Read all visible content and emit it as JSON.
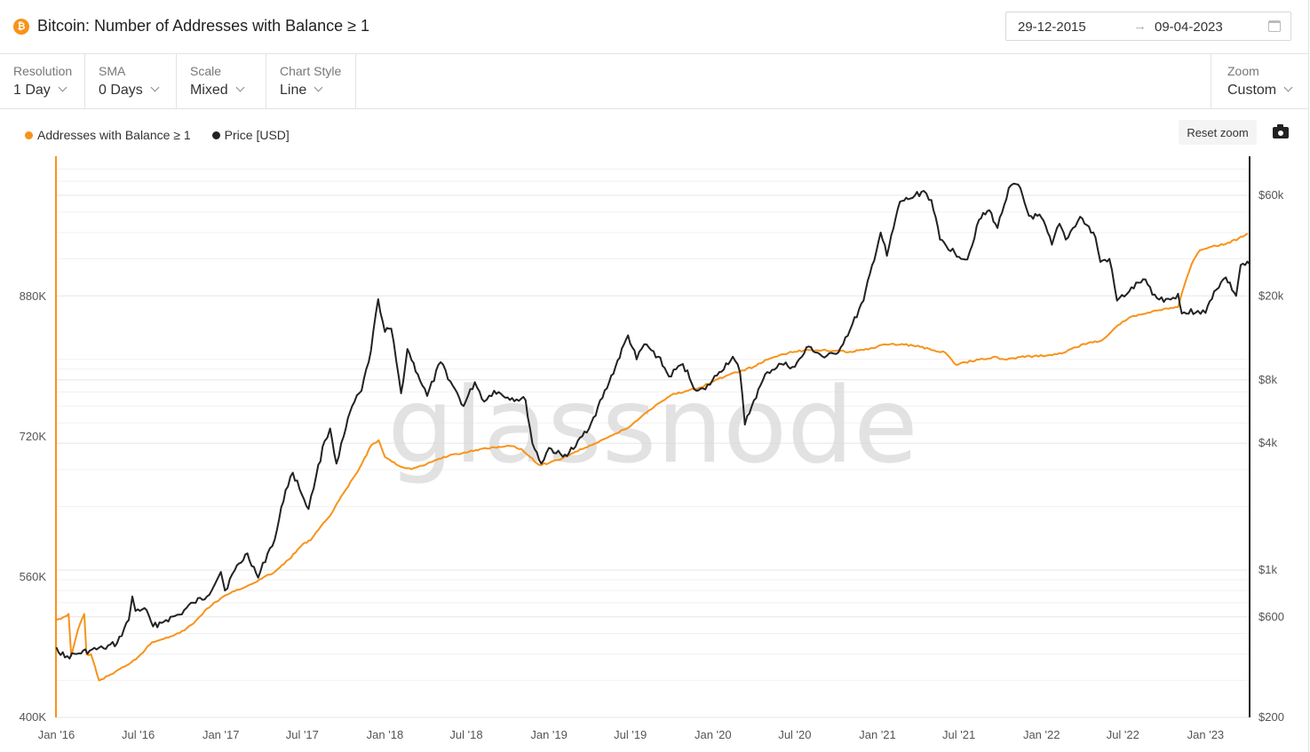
{
  "header": {
    "title": "Bitcoin: Number of Addresses with Balance ≥ 1",
    "asset_icon": "bitcoin-icon",
    "date_start": "29-12-2015",
    "date_arrow": "→",
    "date_end": "09-04-2023",
    "calendar_icon": "calendar-icon"
  },
  "controls": {
    "resolution": {
      "label": "Resolution",
      "value": "1 Day"
    },
    "sma": {
      "label": "SMA",
      "value": "0 Days"
    },
    "scale": {
      "label": "Scale",
      "value": "Mixed"
    },
    "chart_style": {
      "label": "Chart Style",
      "value": "Line"
    },
    "zoom": {
      "label": "Zoom",
      "value": "Custom"
    }
  },
  "toolbar": {
    "reset_zoom_label": "Reset zoom",
    "camera_icon": "camera-icon"
  },
  "watermark": "glassnode",
  "colors": {
    "addresses": "#f7931a",
    "price": "#222222",
    "accent": "#f7931a"
  },
  "chart_data": {
    "type": "line",
    "title": "Bitcoin: Number of Addresses with Balance ≥ 1",
    "legend_position": "top-left",
    "grid": true,
    "x_ticks": [
      "Jan '16",
      "Jul '16",
      "Jan '17",
      "Jul '17",
      "Jan '18",
      "Jul '18",
      "Jan '19",
      "Jul '19",
      "Jan '20",
      "Jul '20",
      "Jan '21",
      "Jul '21",
      "Jan '22",
      "Jul '22",
      "Jan '23"
    ],
    "xlim": [
      "2015-12-29",
      "2023-04-09"
    ],
    "y_left": {
      "ticks": [
        "400K",
        "560K",
        "720K",
        "880K"
      ],
      "tick_values": [
        400000,
        560000,
        720000,
        880000
      ],
      "scale": "linear",
      "ylim": [
        400000,
        1040000
      ]
    },
    "y_right": {
      "ticks": [
        "$200",
        "$600",
        "$1k",
        "$4k",
        "$8k",
        "$20k",
        "$60k"
      ],
      "tick_values": [
        200,
        600,
        1000,
        4000,
        8000,
        20000,
        60000
      ],
      "scale": "log",
      "ylim": [
        200,
        92000
      ]
    },
    "series": [
      {
        "name": "Addresses with Balance ≥ 1",
        "axis": "left",
        "points": [
          [
            "2016-01-01",
            511000
          ],
          [
            "2016-01-20",
            515000
          ],
          [
            "2016-01-28",
            518000
          ],
          [
            "2016-02-03",
            470000
          ],
          [
            "2016-02-18",
            500000
          ],
          [
            "2016-03-03",
            518000
          ],
          [
            "2016-03-08",
            472000
          ],
          [
            "2016-03-18",
            472000
          ],
          [
            "2016-04-05",
            442000
          ],
          [
            "2016-05-01",
            449000
          ],
          [
            "2016-06-01",
            458000
          ],
          [
            "2016-07-01",
            469000
          ],
          [
            "2016-08-01",
            486000
          ],
          [
            "2016-09-01",
            491000
          ],
          [
            "2016-10-01",
            496000
          ],
          [
            "2016-11-01",
            507000
          ],
          [
            "2016-12-01",
            524000
          ],
          [
            "2017-01-01",
            536000
          ],
          [
            "2017-02-01",
            544000
          ],
          [
            "2017-03-01",
            550000
          ],
          [
            "2017-04-01",
            558000
          ],
          [
            "2017-05-01",
            566000
          ],
          [
            "2017-06-01",
            580000
          ],
          [
            "2017-07-01",
            597000
          ],
          [
            "2017-07-20",
            602000
          ],
          [
            "2017-08-01",
            611000
          ],
          [
            "2017-09-01",
            630000
          ],
          [
            "2017-10-01",
            656000
          ],
          [
            "2017-11-01",
            680000
          ],
          [
            "2017-12-01",
            710000
          ],
          [
            "2017-12-18",
            716000
          ],
          [
            "2018-01-01",
            697000
          ],
          [
            "2018-02-01",
            687000
          ],
          [
            "2018-03-01",
            683000
          ],
          [
            "2018-04-01",
            688000
          ],
          [
            "2018-05-01",
            695000
          ],
          [
            "2018-06-01",
            700000
          ],
          [
            "2018-07-01",
            702000
          ],
          [
            "2018-08-01",
            706000
          ],
          [
            "2018-09-01",
            708000
          ],
          [
            "2018-10-01",
            710000
          ],
          [
            "2018-11-01",
            706000
          ],
          [
            "2018-11-20",
            697000
          ],
          [
            "2018-12-10",
            688000
          ],
          [
            "2019-01-01",
            690000
          ],
          [
            "2019-02-01",
            696000
          ],
          [
            "2019-03-01",
            703000
          ],
          [
            "2019-04-01",
            710000
          ],
          [
            "2019-05-01",
            717000
          ],
          [
            "2019-06-01",
            724000
          ],
          [
            "2019-07-01",
            732000
          ],
          [
            "2019-08-01",
            746000
          ],
          [
            "2019-09-01",
            758000
          ],
          [
            "2019-10-01",
            768000
          ],
          [
            "2019-11-01",
            772000
          ],
          [
            "2019-12-01",
            776000
          ],
          [
            "2020-01-01",
            783000
          ],
          [
            "2020-02-01",
            790000
          ],
          [
            "2020-03-01",
            795000
          ],
          [
            "2020-04-01",
            800000
          ],
          [
            "2020-05-01",
            808000
          ],
          [
            "2020-06-01",
            814000
          ],
          [
            "2020-07-01",
            817000
          ],
          [
            "2020-08-01",
            819000
          ],
          [
            "2020-09-01",
            819000
          ],
          [
            "2020-10-01",
            818000
          ],
          [
            "2020-11-01",
            817000
          ],
          [
            "2020-12-01",
            819000
          ],
          [
            "2021-01-01",
            823000
          ],
          [
            "2021-02-01",
            826000
          ],
          [
            "2021-03-01",
            825000
          ],
          [
            "2021-04-01",
            824000
          ],
          [
            "2021-05-01",
            819000
          ],
          [
            "2021-06-01",
            816000
          ],
          [
            "2021-06-25",
            802000
          ],
          [
            "2021-07-15",
            805000
          ],
          [
            "2021-08-15",
            808000
          ],
          [
            "2021-09-15",
            811000
          ],
          [
            "2021-10-15",
            808000
          ],
          [
            "2021-11-15",
            811000
          ],
          [
            "2021-12-15",
            812000
          ],
          [
            "2022-01-15",
            813000
          ],
          [
            "2022-02-15",
            815000
          ],
          [
            "2022-03-15",
            822000
          ],
          [
            "2022-04-15",
            827000
          ],
          [
            "2022-05-15",
            830000
          ],
          [
            "2022-06-15",
            845000
          ],
          [
            "2022-07-15",
            856000
          ],
          [
            "2022-08-15",
            860000
          ],
          [
            "2022-09-15",
            864000
          ],
          [
            "2022-10-15",
            867000
          ],
          [
            "2022-11-01",
            868000
          ],
          [
            "2022-11-10",
            885000
          ],
          [
            "2022-12-01",
            917000
          ],
          [
            "2022-12-20",
            933000
          ],
          [
            "2023-01-15",
            937000
          ],
          [
            "2023-02-15",
            940000
          ],
          [
            "2023-03-15",
            946000
          ],
          [
            "2023-04-05",
            952000
          ]
        ]
      },
      {
        "name": "Price [USD]",
        "axis": "right",
        "points": [
          [
            "2016-01-01",
            430
          ],
          [
            "2016-01-20",
            385
          ],
          [
            "2016-02-15",
            400
          ],
          [
            "2016-03-15",
            415
          ],
          [
            "2016-04-15",
            425
          ],
          [
            "2016-05-15",
            450
          ],
          [
            "2016-06-10",
            580
          ],
          [
            "2016-06-18",
            750
          ],
          [
            "2016-06-25",
            640
          ],
          [
            "2016-07-15",
            660
          ],
          [
            "2016-08-03",
            540
          ],
          [
            "2016-09-01",
            580
          ],
          [
            "2016-10-01",
            615
          ],
          [
            "2016-11-01",
            700
          ],
          [
            "2016-12-01",
            750
          ],
          [
            "2017-01-01",
            980
          ],
          [
            "2017-01-10",
            800
          ],
          [
            "2017-02-01",
            1000
          ],
          [
            "2017-03-01",
            1200
          ],
          [
            "2017-03-25",
            920
          ],
          [
            "2017-04-15",
            1200
          ],
          [
            "2017-05-01",
            1400
          ],
          [
            "2017-05-25",
            2400
          ],
          [
            "2017-06-10",
            2900
          ],
          [
            "2017-07-15",
            1950
          ],
          [
            "2017-08-01",
            2800
          ],
          [
            "2017-08-20",
            4100
          ],
          [
            "2017-09-01",
            4700
          ],
          [
            "2017-09-15",
            3200
          ],
          [
            "2017-10-01",
            4300
          ],
          [
            "2017-10-20",
            6000
          ],
          [
            "2017-11-10",
            7100
          ],
          [
            "2017-12-01",
            11000
          ],
          [
            "2017-12-17",
            19300
          ],
          [
            "2018-01-01",
            13500
          ],
          [
            "2018-01-15",
            14000
          ],
          [
            "2018-02-06",
            6900
          ],
          [
            "2018-02-20",
            11200
          ],
          [
            "2018-03-15",
            8500
          ],
          [
            "2018-04-05",
            6700
          ],
          [
            "2018-05-05",
            9700
          ],
          [
            "2018-06-01",
            7500
          ],
          [
            "2018-06-25",
            6000
          ],
          [
            "2018-07-20",
            7800
          ],
          [
            "2018-08-10",
            6300
          ],
          [
            "2018-09-01",
            7100
          ],
          [
            "2018-10-01",
            6600
          ],
          [
            "2018-11-10",
            6400
          ],
          [
            "2018-11-25",
            4000
          ],
          [
            "2018-12-15",
            3200
          ],
          [
            "2019-01-01",
            3800
          ],
          [
            "2019-02-01",
            3450
          ],
          [
            "2019-03-01",
            3850
          ],
          [
            "2019-04-05",
            5000
          ],
          [
            "2019-05-15",
            7800
          ],
          [
            "2019-06-26",
            13000
          ],
          [
            "2019-07-15",
            10000
          ],
          [
            "2019-08-01",
            11800
          ],
          [
            "2019-09-01",
            10300
          ],
          [
            "2019-09-25",
            8300
          ],
          [
            "2019-10-26",
            9500
          ],
          [
            "2019-11-25",
            7100
          ],
          [
            "2019-12-15",
            7200
          ],
          [
            "2020-01-15",
            8700
          ],
          [
            "2020-02-14",
            10300
          ],
          [
            "2020-03-01",
            8700
          ],
          [
            "2020-03-12",
            4900
          ],
          [
            "2020-04-01",
            6400
          ],
          [
            "2020-05-01",
            8700
          ],
          [
            "2020-06-01",
            9500
          ],
          [
            "2020-07-01",
            9200
          ],
          [
            "2020-08-01",
            11500
          ],
          [
            "2020-09-05",
            10200
          ],
          [
            "2020-10-01",
            10600
          ],
          [
            "2020-11-01",
            13800
          ],
          [
            "2020-12-01",
            19000
          ],
          [
            "2021-01-08",
            40000
          ],
          [
            "2021-01-22",
            31000
          ],
          [
            "2021-02-20",
            56000
          ],
          [
            "2021-03-15",
            58000
          ],
          [
            "2021-04-14",
            63000
          ],
          [
            "2021-05-01",
            57000
          ],
          [
            "2021-05-20",
            37000
          ],
          [
            "2021-06-22",
            32000
          ],
          [
            "2021-07-20",
            29800
          ],
          [
            "2021-08-15",
            46000
          ],
          [
            "2021-09-07",
            51000
          ],
          [
            "2021-09-25",
            42000
          ],
          [
            "2021-10-20",
            65000
          ],
          [
            "2021-11-10",
            67500
          ],
          [
            "2021-12-04",
            48000
          ],
          [
            "2022-01-01",
            47000
          ],
          [
            "2022-01-24",
            35000
          ],
          [
            "2022-02-10",
            44000
          ],
          [
            "2022-02-24",
            37000
          ],
          [
            "2022-03-28",
            47500
          ],
          [
            "2022-05-01",
            38000
          ],
          [
            "2022-05-12",
            29000
          ],
          [
            "2022-06-01",
            30000
          ],
          [
            "2022-06-18",
            19000
          ],
          [
            "2022-07-15",
            21000
          ],
          [
            "2022-08-15",
            24000
          ],
          [
            "2022-09-15",
            19500
          ],
          [
            "2022-10-15",
            19200
          ],
          [
            "2022-11-01",
            20500
          ],
          [
            "2022-11-09",
            16500
          ],
          [
            "2022-12-15",
            17000
          ],
          [
            "2023-01-01",
            16600
          ],
          [
            "2023-01-20",
            21000
          ],
          [
            "2023-02-15",
            24500
          ],
          [
            "2023-03-10",
            20000
          ],
          [
            "2023-03-20",
            28000
          ],
          [
            "2023-04-09",
            28300
          ]
        ]
      }
    ]
  }
}
